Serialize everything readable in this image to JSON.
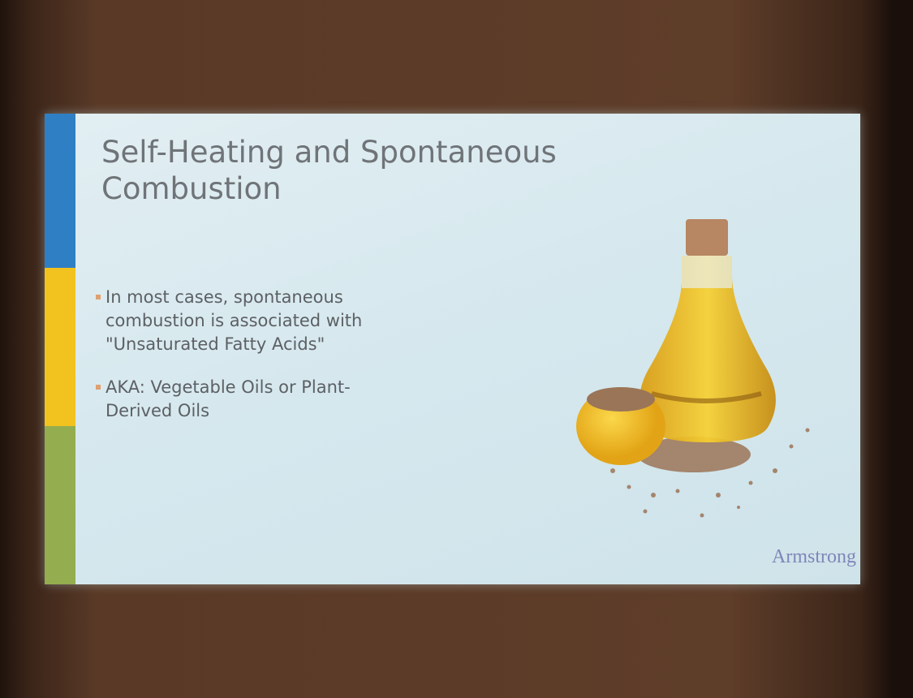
{
  "slide": {
    "title": "Self-Heating and Spontaneous Combustion",
    "bullets": [
      "In most cases, spontaneous combustion is associated with \"Unsaturated Fatty Acids\"",
      "AKA: Vegetable Oils or Plant-Derived Oils"
    ],
    "logo": "Armstrong"
  }
}
